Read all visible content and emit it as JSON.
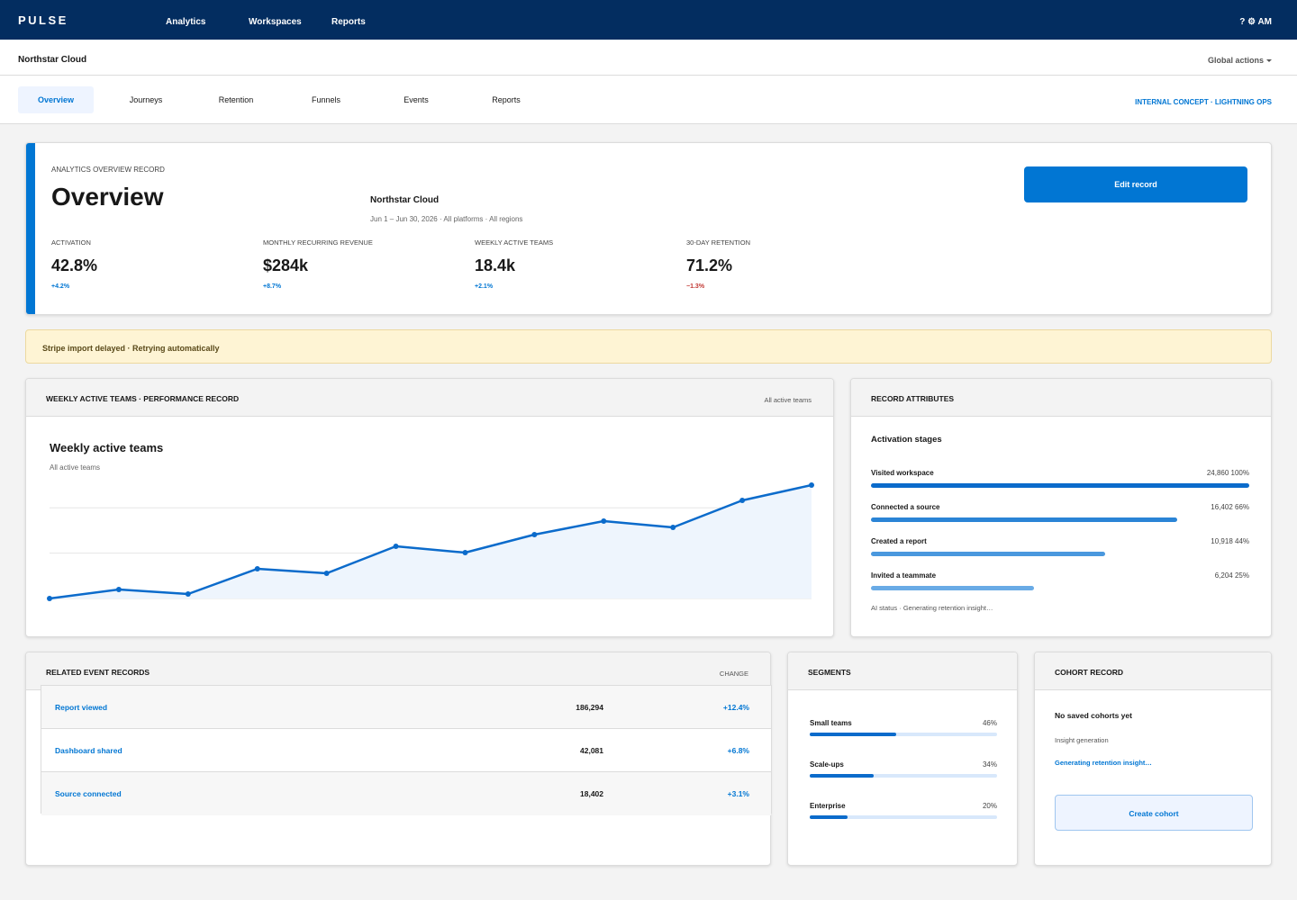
{
  "app": {
    "brand": "PULSE",
    "nav": [
      "Analytics",
      "Workspaces",
      "Reports"
    ],
    "user": "? ⚙ AM"
  },
  "context": {
    "title": "Northstar Cloud",
    "global_actions": "Global actions"
  },
  "tabs": {
    "items": [
      "Overview",
      "Journeys",
      "Retention",
      "Funnels",
      "Events",
      "Reports"
    ],
    "active": "Overview",
    "meta": "INTERNAL CONCEPT · LIGHTNING OPS"
  },
  "overview": {
    "eyebrow": "ANALYTICS OVERVIEW RECORD",
    "title": "Overview",
    "org": "Northstar Cloud",
    "date_range": "Jun 1 – Jun 30, 2026 · All platforms · All regions",
    "edit_label": "Edit record",
    "kpis": [
      {
        "label": "ACTIVATION",
        "value": "42.8%",
        "delta": "+4.2%",
        "trend": "up"
      },
      {
        "label": "MONTHLY RECURRING REVENUE",
        "value": "$284k",
        "delta": "+8.7%",
        "trend": "up"
      },
      {
        "label": "WEEKLY ACTIVE TEAMS",
        "value": "18.4k",
        "delta": "+2.1%",
        "trend": "up"
      },
      {
        "label": "30-DAY RETENTION",
        "value": "71.2%",
        "delta": "−1.3%",
        "trend": "down"
      }
    ]
  },
  "alert": {
    "text": "Stripe import delayed · Retrying automatically"
  },
  "performance": {
    "header": "WEEKLY ACTIVE TEAMS · PERFORMANCE RECORD",
    "filter": "All active teams",
    "title": "Weekly active teams",
    "subtitle": "All active teams"
  },
  "chart_data": {
    "type": "area",
    "title": "Weekly active teams",
    "subtitle": "All active teams",
    "x": [
      1,
      2,
      3,
      4,
      5,
      6,
      7,
      8,
      9,
      10,
      11,
      12
    ],
    "values": [
      0,
      10,
      5,
      33,
      28,
      58,
      51,
      71,
      86,
      79,
      109,
      126
    ],
    "ylim": [
      0,
      126
    ],
    "grid": true,
    "colors": {
      "line": "#0b6bcb",
      "fill": "#eef5fd",
      "grid": "#e6e6e6"
    }
  },
  "attributes": {
    "header": "RECORD ATTRIBUTES",
    "subtitle": "Activation stages",
    "stages": [
      {
        "label": "Visited workspace",
        "value": "24,860 100%",
        "fraction": 1.0,
        "color": "#0b6bcb"
      },
      {
        "label": "Connected a source",
        "value": "16,402 66%",
        "fraction": 0.81,
        "color": "#2a84d6"
      },
      {
        "label": "Created a report",
        "value": "10,918 44%",
        "fraction": 0.62,
        "color": "#4a98de"
      },
      {
        "label": "Invited a teammate",
        "value": "6,204 25%",
        "fraction": 0.43,
        "color": "#69abe6"
      }
    ],
    "ai_status": "AI status · Generating retention insight…"
  },
  "events": {
    "header": "RELATED EVENT RECORDS",
    "change_header": "CHANGE",
    "rows": [
      {
        "name": "Report viewed",
        "count": "186,294",
        "change": "+12.4%"
      },
      {
        "name": "Dashboard shared",
        "count": "42,081",
        "change": "+6.8%"
      },
      {
        "name": "Source connected",
        "count": "18,402",
        "change": "+3.1%"
      }
    ]
  },
  "segments": {
    "header": "SEGMENTS",
    "items": [
      {
        "label": "Small teams",
        "pct": "46%",
        "fraction": 0.46
      },
      {
        "label": "Scale-ups",
        "pct": "34%",
        "fraction": 0.34
      },
      {
        "label": "Enterprise",
        "pct": "20%",
        "fraction": 0.2
      }
    ]
  },
  "cohort": {
    "header": "COHORT RECORD",
    "empty": "No saved cohorts yet",
    "label": "Insight generation",
    "status": "Generating retention insight…",
    "button": "Create cohort"
  }
}
